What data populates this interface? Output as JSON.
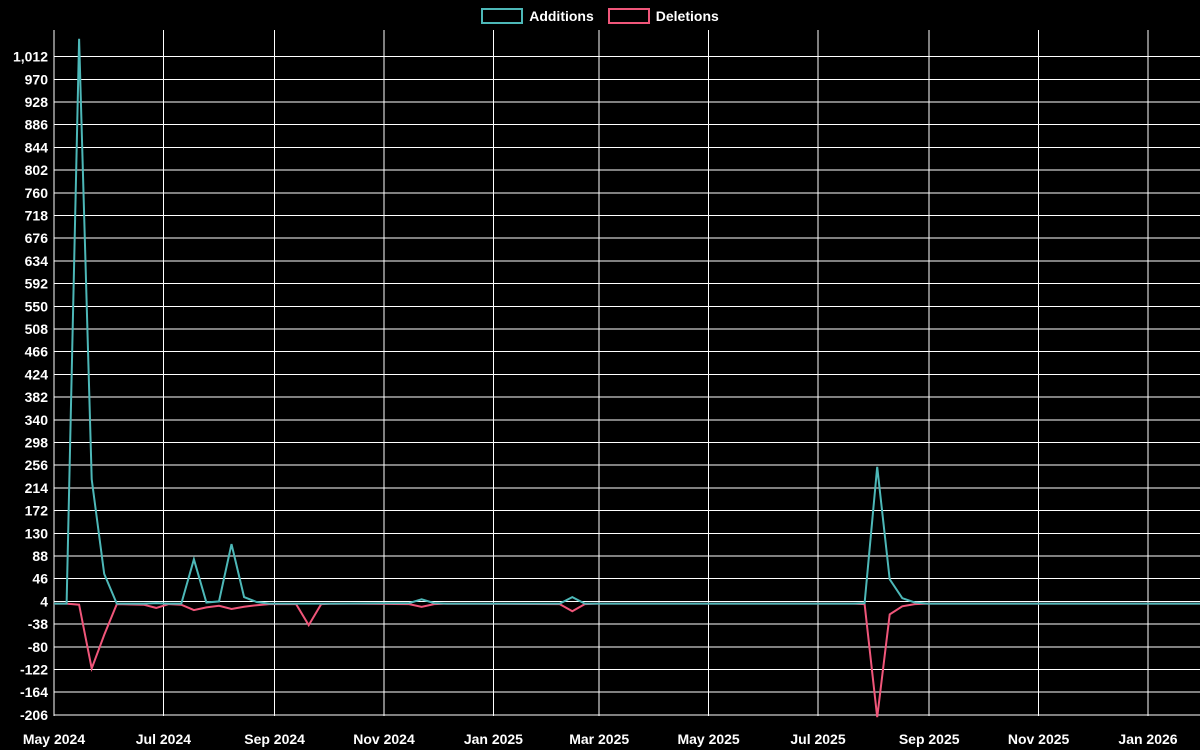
{
  "legend": {
    "additions": "Additions",
    "deletions": "Deletions"
  },
  "colors": {
    "background": "#000000",
    "grid": "#ffffff",
    "text": "#ffffff",
    "additions": "#4db8b8",
    "deletions": "#f0567a"
  },
  "chart_data": {
    "type": "line",
    "title": "",
    "xlabel": "",
    "ylabel": "",
    "grid": true,
    "legend_position": "top-center",
    "legend_entries": [
      "Additions",
      "Deletions"
    ],
    "y_ticks": [
      1012,
      970,
      928,
      886,
      844,
      802,
      760,
      718,
      676,
      634,
      592,
      550,
      508,
      466,
      424,
      382,
      340,
      298,
      256,
      214,
      172,
      130,
      88,
      46,
      4,
      -38,
      -80,
      -122,
      -164,
      -206
    ],
    "y_tick_step": 42,
    "ylim": [
      -219,
      1061
    ],
    "x_ticks": [
      {
        "label": "May 2024",
        "date": "2024-05-01"
      },
      {
        "label": "Jul 2024",
        "date": "2024-07-01"
      },
      {
        "label": "Sep 2024",
        "date": "2024-09-01"
      },
      {
        "label": "Nov 2024",
        "date": "2024-11-01"
      },
      {
        "label": "Jan 2025",
        "date": "2025-01-01"
      },
      {
        "label": "Mar 2025",
        "date": "2025-03-01"
      },
      {
        "label": "May 2025",
        "date": "2025-05-01"
      },
      {
        "label": "Jul 2025",
        "date": "2025-07-01"
      },
      {
        "label": "Sep 2025",
        "date": "2025-09-01"
      },
      {
        "label": "Nov 2025",
        "date": "2025-11-01"
      },
      {
        "label": "Jan 2026",
        "date": "2026-01-01"
      }
    ],
    "x_range": [
      "2024-05-01",
      "2026-01-31"
    ],
    "series_names": {
      "additions": "Additions",
      "deletions": "Deletions"
    },
    "points": [
      {
        "date": "2024-05-01",
        "additions": 0,
        "deletions": 0
      },
      {
        "date": "2024-05-08",
        "additions": 0,
        "deletions": 0
      },
      {
        "date": "2024-05-15",
        "additions": 1045,
        "deletions": -2
      },
      {
        "date": "2024-05-22",
        "additions": 230,
        "deletions": -120
      },
      {
        "date": "2024-05-29",
        "additions": 55,
        "deletions": -58
      },
      {
        "date": "2024-06-05",
        "additions": 0,
        "deletions": -1
      },
      {
        "date": "2024-06-20",
        "additions": 0,
        "deletions": -2
      },
      {
        "date": "2024-06-27",
        "additions": 1,
        "deletions": -8
      },
      {
        "date": "2024-07-04",
        "additions": 0,
        "deletions": -1
      },
      {
        "date": "2024-07-11",
        "additions": 0,
        "deletions": -2
      },
      {
        "date": "2024-07-18",
        "additions": 82,
        "deletions": -12
      },
      {
        "date": "2024-07-25",
        "additions": 2,
        "deletions": -7
      },
      {
        "date": "2024-08-01",
        "additions": 4,
        "deletions": -4
      },
      {
        "date": "2024-08-08",
        "additions": 110,
        "deletions": -10
      },
      {
        "date": "2024-08-15",
        "additions": 12,
        "deletions": -6
      },
      {
        "date": "2024-08-22",
        "additions": 3,
        "deletions": -3
      },
      {
        "date": "2024-08-29",
        "additions": 0,
        "deletions": -1
      },
      {
        "date": "2024-09-13",
        "additions": 0,
        "deletions": -1
      },
      {
        "date": "2024-09-20",
        "additions": 0,
        "deletions": -40
      },
      {
        "date": "2024-09-27",
        "additions": 0,
        "deletions": -1
      },
      {
        "date": "2024-10-04",
        "additions": 0,
        "deletions": 0
      },
      {
        "date": "2024-11-15",
        "additions": 1,
        "deletions": -1
      },
      {
        "date": "2024-11-22",
        "additions": 8,
        "deletions": -6
      },
      {
        "date": "2024-11-29",
        "additions": 1,
        "deletions": -1
      },
      {
        "date": "2024-12-06",
        "additions": 0,
        "deletions": 0
      },
      {
        "date": "2025-02-07",
        "additions": 0,
        "deletions": -1
      },
      {
        "date": "2025-02-14",
        "additions": 12,
        "deletions": -14
      },
      {
        "date": "2025-02-21",
        "additions": 0,
        "deletions": -1
      },
      {
        "date": "2025-02-28",
        "additions": 0,
        "deletions": 0
      },
      {
        "date": "2025-07-20",
        "additions": 0,
        "deletions": 0
      },
      {
        "date": "2025-07-27",
        "additions": 1,
        "deletions": -1
      },
      {
        "date": "2025-08-03",
        "additions": 253,
        "deletions": -210
      },
      {
        "date": "2025-08-10",
        "additions": 45,
        "deletions": -20
      },
      {
        "date": "2025-08-17",
        "additions": 10,
        "deletions": -5
      },
      {
        "date": "2025-08-24",
        "additions": 2,
        "deletions": -1
      },
      {
        "date": "2025-08-31",
        "additions": 0,
        "deletions": 0
      },
      {
        "date": "2026-01-31",
        "additions": 0,
        "deletions": 0
      }
    ]
  }
}
